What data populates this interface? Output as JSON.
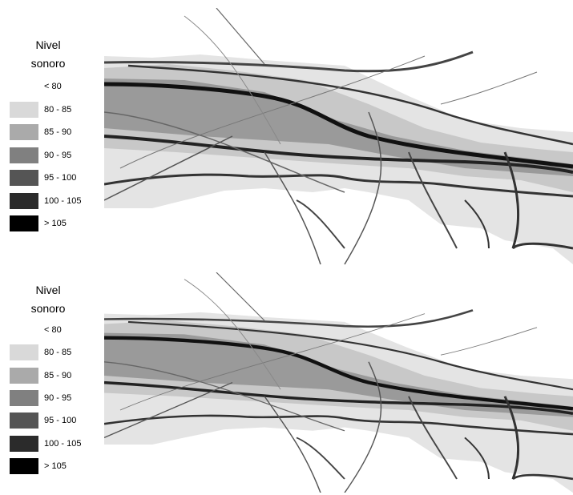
{
  "panels": [
    {
      "legend": {
        "title_lines": [
          "Nivel",
          "sonoro"
        ],
        "items": [
          {
            "label": "< 80",
            "color": "#ffffff"
          },
          {
            "label": "80 - 85",
            "color": "#d9d9d9"
          },
          {
            "label": "85 - 90",
            "color": "#aaaaaa"
          },
          {
            "label": "90 - 95",
            "color": "#808080"
          },
          {
            "label": "95 - 100",
            "color": "#555555"
          },
          {
            "label": "100 - 105",
            "color": "#2b2b2b"
          },
          {
            "label": "> 105",
            "color": "#000000"
          }
        ]
      }
    },
    {
      "legend": {
        "title_lines": [
          "Nivel",
          "sonoro"
        ],
        "items": [
          {
            "label": "< 80",
            "color": "#ffffff"
          },
          {
            "label": "80 - 85",
            "color": "#d9d9d9"
          },
          {
            "label": "85 - 90",
            "color": "#aaaaaa"
          },
          {
            "label": "90 - 95",
            "color": "#808080"
          },
          {
            "label": "95 - 100",
            "color": "#555555"
          },
          {
            "label": "100 - 105",
            "color": "#2b2b2b"
          },
          {
            "label": "> 105",
            "color": "#000000"
          }
        ]
      }
    }
  ]
}
